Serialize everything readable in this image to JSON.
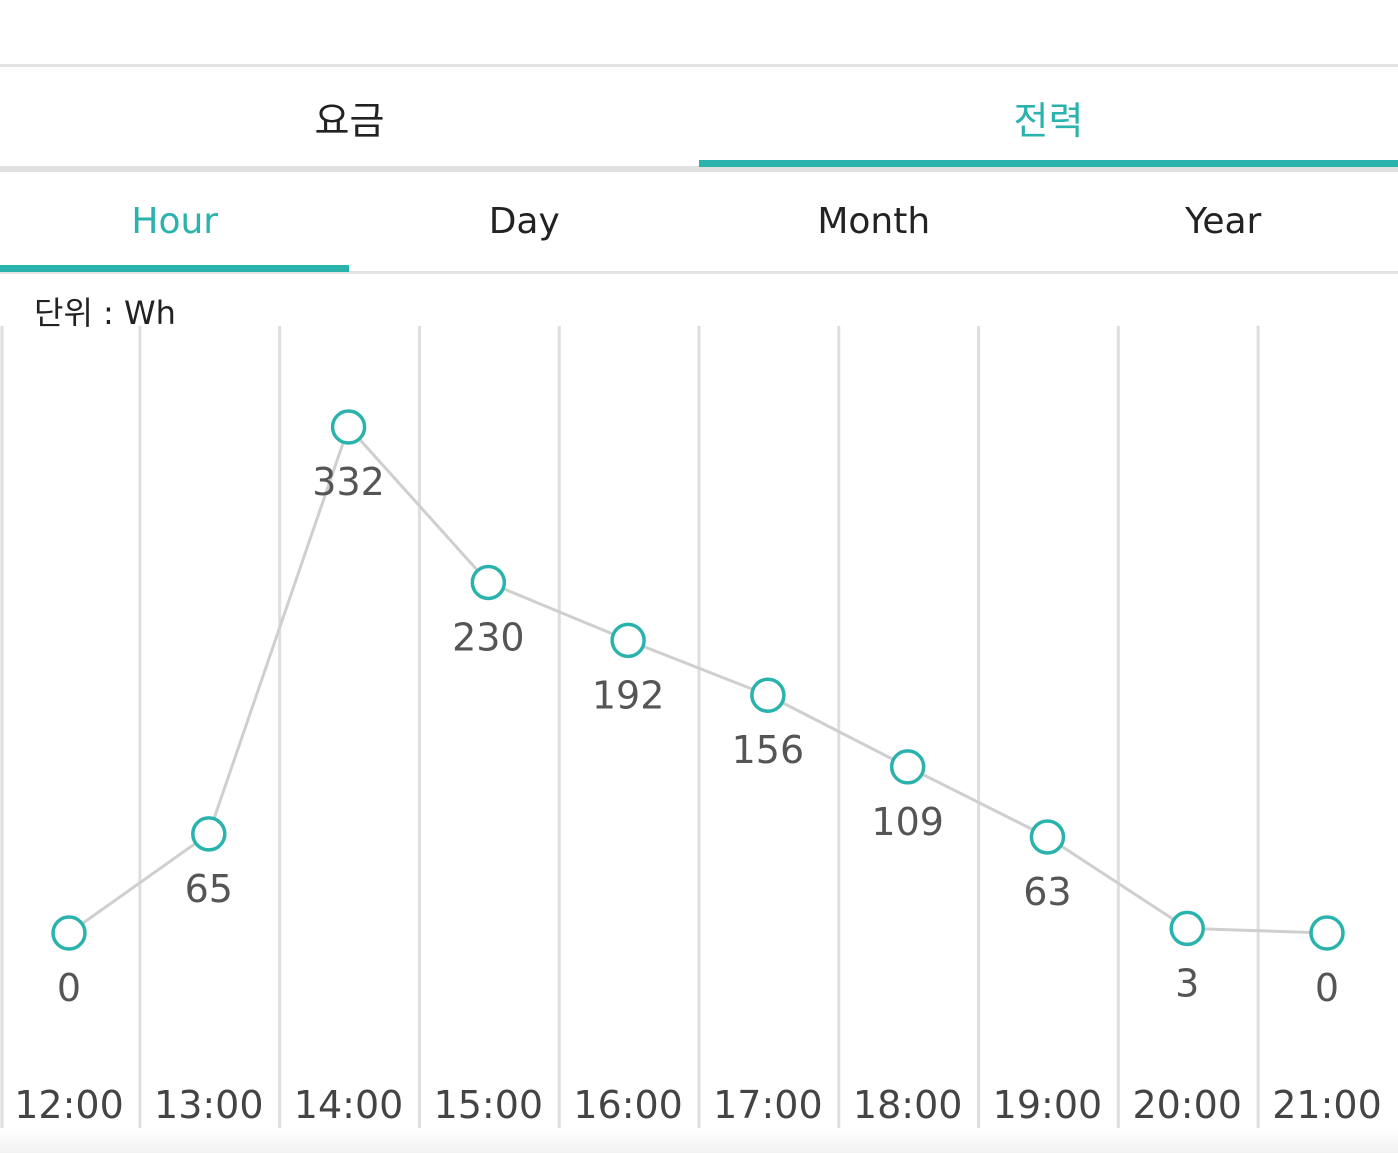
{
  "tabs": {
    "main": [
      {
        "label": "요금",
        "active": false
      },
      {
        "label": "전력",
        "active": true
      }
    ],
    "sub": [
      {
        "label": "Hour",
        "active": true
      },
      {
        "label": "Day",
        "active": false
      },
      {
        "label": "Month",
        "active": false
      },
      {
        "label": "Year",
        "active": false
      }
    ]
  },
  "unit_label": "단위 : Wh",
  "colors": {
    "accent": "#2ab3ad",
    "line": "#cfcfcf",
    "grid": "#dedede",
    "value_text": "#555555",
    "axis_text": "#444444"
  },
  "chart_data": {
    "type": "line",
    "categories": [
      "12:00",
      "13:00",
      "14:00",
      "15:00",
      "16:00",
      "17:00",
      "18:00",
      "19:00",
      "20:00",
      "21:00"
    ],
    "series": [
      {
        "values": [
          0,
          65,
          332,
          230,
          192,
          156,
          109,
          63,
          3,
          0
        ]
      }
    ],
    "ylabel": "",
    "xlabel": "",
    "ylim": [
      0,
      332
    ],
    "grid": true,
    "legend": "none"
  }
}
